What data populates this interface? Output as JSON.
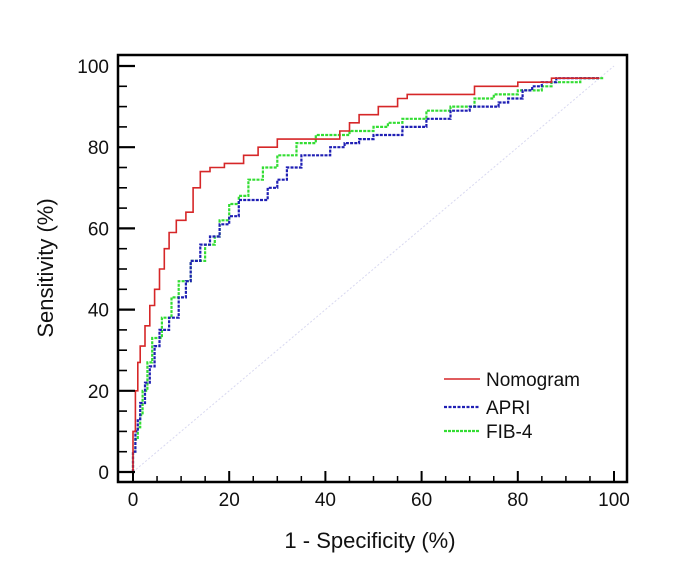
{
  "chart_data": {
    "type": "line",
    "title": "",
    "xlabel": "1 - Specificity (%)",
    "ylabel": "Sensitivity (%)",
    "xlim": [
      0,
      100
    ],
    "ylim": [
      0,
      100
    ],
    "xticks": [
      0,
      20,
      40,
      60,
      80,
      100
    ],
    "yticks": [
      0,
      20,
      40,
      60,
      80,
      100
    ],
    "xtick_labels": [
      "0",
      "20",
      "40",
      "60",
      "80",
      "100"
    ],
    "ytick_labels": [
      "0",
      "20",
      "40",
      "60",
      "80",
      "100"
    ],
    "grid": false,
    "legend_position": "bottom-right",
    "reference_line": {
      "name": "chance",
      "x": [
        0,
        100
      ],
      "y": [
        0,
        100
      ],
      "color": "#d8d8f0"
    },
    "series": [
      {
        "name": "Nomogram",
        "color": "#d62728",
        "style": "solid",
        "x": [
          0,
          0,
          0.5,
          0.5,
          1,
          1,
          1.5,
          1.5,
          2.5,
          2.5,
          3.5,
          3.5,
          4.5,
          4.5,
          5.5,
          5.5,
          6.5,
          6.5,
          7.5,
          7.5,
          9,
          9,
          11,
          11,
          12.5,
          12.5,
          14,
          14,
          16,
          16,
          19,
          19,
          23,
          23,
          26,
          26,
          30,
          30,
          43,
          43,
          45,
          45,
          47,
          47,
          51,
          51,
          55,
          55,
          57,
          57,
          71,
          71,
          80,
          80,
          87,
          87,
          97
        ],
        "y": [
          0,
          10,
          10,
          20,
          20,
          27,
          27,
          31,
          31,
          36,
          36,
          41,
          41,
          45,
          45,
          50,
          50,
          55,
          55,
          59,
          59,
          62,
          62,
          64,
          64,
          70,
          70,
          74,
          74,
          75,
          75,
          76,
          76,
          78,
          78,
          80,
          80,
          82,
          82,
          84,
          84,
          86,
          86,
          88,
          88,
          90,
          90,
          92,
          92,
          93,
          93,
          95,
          95,
          96,
          96,
          97,
          97
        ]
      },
      {
        "name": "APRI",
        "color": "#1f1fb4",
        "style": "dashed",
        "x": [
          0,
          0,
          0.5,
          0.5,
          1,
          1,
          1.5,
          1.5,
          2.5,
          2.5,
          3.5,
          3.5,
          4.5,
          4.5,
          5.5,
          5.5,
          7.5,
          7.5,
          9.5,
          9.5,
          11,
          11,
          12,
          12,
          14,
          14,
          16,
          16,
          18,
          18,
          20,
          20,
          22,
          22,
          28,
          28,
          30,
          30,
          32,
          32,
          35,
          35,
          41,
          41,
          44,
          44,
          47,
          47,
          50,
          50,
          56,
          56,
          61,
          61,
          66,
          66,
          70,
          70,
          76,
          76,
          78,
          78,
          81,
          81,
          83,
          83,
          85,
          85,
          88,
          88,
          97
        ],
        "y": [
          0,
          5,
          5,
          10,
          10,
          13,
          13,
          17,
          17,
          22,
          22,
          26,
          26,
          31,
          31,
          35,
          35,
          38,
          38,
          43,
          43,
          47,
          47,
          52,
          52,
          56,
          56,
          58,
          58,
          61,
          61,
          63,
          63,
          67,
          67,
          70,
          70,
          72,
          72,
          75,
          75,
          78,
          78,
          80,
          80,
          81,
          81,
          82,
          82,
          83,
          83,
          85,
          85,
          87,
          87,
          89,
          89,
          90,
          90,
          91,
          91,
          92,
          92,
          94,
          94,
          95,
          95,
          96,
          96,
          97,
          97
        ]
      },
      {
        "name": "FIB-4",
        "color": "#33dd33",
        "style": "dashed",
        "x": [
          0,
          0,
          0.5,
          0.5,
          1,
          1,
          1.5,
          1.5,
          2,
          2,
          3,
          3,
          4,
          4,
          6,
          6,
          8,
          8,
          9.5,
          9.5,
          12,
          12,
          15,
          15,
          17,
          17,
          18,
          18,
          20,
          20,
          22,
          22,
          24,
          24,
          27,
          27,
          30,
          30,
          34,
          34,
          38,
          38,
          45,
          45,
          50,
          50,
          53,
          53,
          56,
          56,
          61,
          61,
          66,
          66,
          71,
          71,
          75,
          75,
          80,
          80,
          85,
          85,
          87,
          87,
          93,
          93,
          98
        ],
        "y": [
          0,
          5,
          5,
          8,
          8,
          11,
          11,
          14,
          14,
          20,
          20,
          27,
          27,
          33,
          33,
          38,
          38,
          43,
          43,
          47,
          47,
          52,
          52,
          56,
          56,
          58,
          58,
          62,
          62,
          66,
          66,
          68,
          68,
          72,
          72,
          75,
          75,
          78,
          78,
          81,
          81,
          83,
          83,
          84,
          84,
          85,
          85,
          86,
          86,
          87,
          87,
          89,
          89,
          90,
          90,
          92,
          92,
          93,
          93,
          94,
          94,
          95,
          95,
          96,
          96,
          97,
          97
        ]
      }
    ]
  }
}
